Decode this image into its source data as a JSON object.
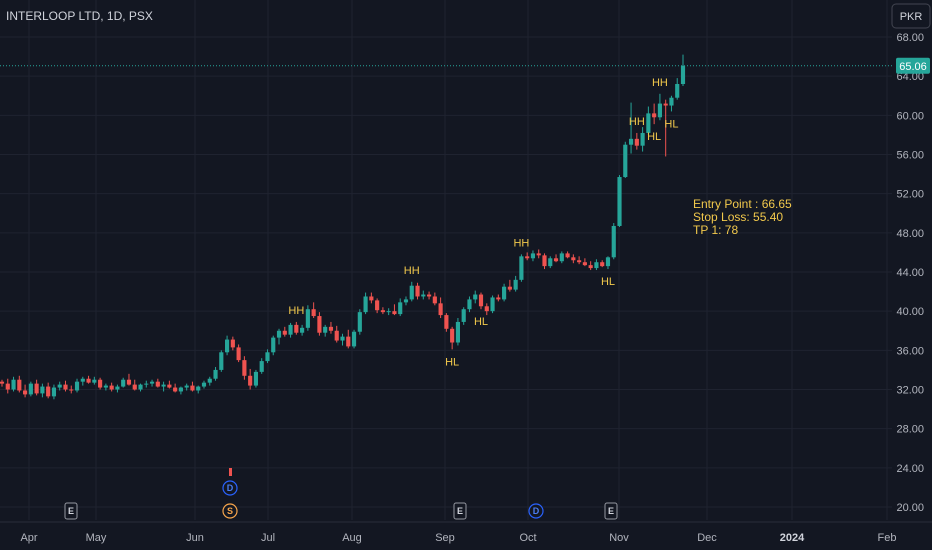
{
  "chart_data": {
    "type": "candlestick",
    "title": "INTERLOOP LTD, 1D, PSX",
    "currency": "PKR",
    "last_price": "65.06",
    "y_ticks": [
      "68.00",
      "64.00",
      "60.00",
      "56.00",
      "52.00",
      "48.00",
      "44.00",
      "40.00",
      "36.00",
      "32.00",
      "28.00",
      "24.00",
      "20.00"
    ],
    "ylim": [
      19.5,
      70.3
    ],
    "x_ticks": [
      "Apr",
      "May",
      "Jun",
      "Jul",
      "Aug",
      "Sep",
      "Oct",
      "Nov",
      "Dec",
      "2024",
      "Feb"
    ],
    "grid": true,
    "colors": {
      "background": "#131722",
      "up": "#26a69a",
      "down": "#ef5350",
      "grid": "#1f2330",
      "annotation": "#f2c94c"
    },
    "candles": [
      [
        32.8,
        33.0,
        32.3,
        32.6
      ],
      [
        32.6,
        33.1,
        31.6,
        32.0
      ],
      [
        32.0,
        33.3,
        31.8,
        33.0
      ],
      [
        33.0,
        33.4,
        31.7,
        31.9
      ],
      [
        31.9,
        32.5,
        31.2,
        31.5
      ],
      [
        31.5,
        32.8,
        31.3,
        32.6
      ],
      [
        32.6,
        33.0,
        31.4,
        31.6
      ],
      [
        31.6,
        32.6,
        31.2,
        32.3
      ],
      [
        32.3,
        32.7,
        31.1,
        31.3
      ],
      [
        31.3,
        32.5,
        31.0,
        32.2
      ],
      [
        32.2,
        32.8,
        31.9,
        32.5
      ],
      [
        32.5,
        32.9,
        31.8,
        32.0
      ],
      [
        32.0,
        32.4,
        31.6,
        31.9
      ],
      [
        31.9,
        33.1,
        31.7,
        32.8
      ],
      [
        32.8,
        33.3,
        32.4,
        33.1
      ],
      [
        33.1,
        33.4,
        32.6,
        32.7
      ],
      [
        32.7,
        33.3,
        32.5,
        33.0
      ],
      [
        33.0,
        33.2,
        32.0,
        32.2
      ],
      [
        32.2,
        32.6,
        31.9,
        32.4
      ],
      [
        32.4,
        32.7,
        31.8,
        32.0
      ],
      [
        32.0,
        32.5,
        31.7,
        32.3
      ],
      [
        32.3,
        33.2,
        32.2,
        33.0
      ],
      [
        33.0,
        33.6,
        32.4,
        32.5
      ],
      [
        32.5,
        33.0,
        31.9,
        32.0
      ],
      [
        32.0,
        32.6,
        31.8,
        32.5
      ],
      [
        32.5,
        32.9,
        32.2,
        32.6
      ],
      [
        32.6,
        33.0,
        32.3,
        32.8
      ],
      [
        32.8,
        33.1,
        32.2,
        32.3
      ],
      [
        32.3,
        32.8,
        31.8,
        32.5
      ],
      [
        32.5,
        32.9,
        32.1,
        32.2
      ],
      [
        32.2,
        32.6,
        31.7,
        31.8
      ],
      [
        31.8,
        32.3,
        31.5,
        32.2
      ],
      [
        32.2,
        32.6,
        31.9,
        32.4
      ],
      [
        32.4,
        32.8,
        31.8,
        31.9
      ],
      [
        31.9,
        32.4,
        31.6,
        32.3
      ],
      [
        32.3,
        32.9,
        32.1,
        32.7
      ],
      [
        32.7,
        33.3,
        32.4,
        33.1
      ],
      [
        33.1,
        34.3,
        32.9,
        34.0
      ],
      [
        34.0,
        36.0,
        33.8,
        35.8
      ],
      [
        35.8,
        37.5,
        35.5,
        37.1
      ],
      [
        37.1,
        37.4,
        36.0,
        36.3
      ],
      [
        36.3,
        36.6,
        34.8,
        35.0
      ],
      [
        35.0,
        35.4,
        33.0,
        33.4
      ],
      [
        33.4,
        34.1,
        32.0,
        32.4
      ],
      [
        32.4,
        34.0,
        32.2,
        33.8
      ],
      [
        33.8,
        35.2,
        33.6,
        34.9
      ],
      [
        34.9,
        36.1,
        34.7,
        35.8
      ],
      [
        35.8,
        37.5,
        35.5,
        37.3
      ],
      [
        37.3,
        38.2,
        36.6,
        38.0
      ],
      [
        38.0,
        38.4,
        37.4,
        37.6
      ],
      [
        37.6,
        38.8,
        37.3,
        38.6
      ],
      [
        38.6,
        38.9,
        37.6,
        37.8
      ],
      [
        37.8,
        38.6,
        37.5,
        38.3
      ],
      [
        38.3,
        40.6,
        38.0,
        40.2
      ],
      [
        40.2,
        40.9,
        39.3,
        39.5
      ],
      [
        39.5,
        39.9,
        37.5,
        37.8
      ],
      [
        37.8,
        38.6,
        37.4,
        38.4
      ],
      [
        38.4,
        38.9,
        37.7,
        38.0
      ],
      [
        38.0,
        38.5,
        36.8,
        37.0
      ],
      [
        37.0,
        37.7,
        36.5,
        37.4
      ],
      [
        37.4,
        38.1,
        36.2,
        36.4
      ],
      [
        36.4,
        38.1,
        36.2,
        37.9
      ],
      [
        37.9,
        40.2,
        37.6,
        39.9
      ],
      [
        39.9,
        41.9,
        39.7,
        41.5
      ],
      [
        41.5,
        41.9,
        40.8,
        41.1
      ],
      [
        41.1,
        41.3,
        39.8,
        40.1
      ],
      [
        40.1,
        40.4,
        39.7,
        39.9
      ],
      [
        39.9,
        40.3,
        39.6,
        40.0
      ],
      [
        40.0,
        40.7,
        39.6,
        39.7
      ],
      [
        39.7,
        41.3,
        39.5,
        40.9
      ],
      [
        40.9,
        41.5,
        40.6,
        41.2
      ],
      [
        41.2,
        43.0,
        41.0,
        42.6
      ],
      [
        42.6,
        42.9,
        41.2,
        41.5
      ],
      [
        41.5,
        42.1,
        41.2,
        41.7
      ],
      [
        41.7,
        42.0,
        41.2,
        41.5
      ],
      [
        41.5,
        41.9,
        40.6,
        40.8
      ],
      [
        40.8,
        41.4,
        39.3,
        39.6
      ],
      [
        39.6,
        39.8,
        37.9,
        38.2
      ],
      [
        38.2,
        38.4,
        36.1,
        36.8
      ],
      [
        36.8,
        39.3,
        36.5,
        38.9
      ],
      [
        38.9,
        40.4,
        38.6,
        40.2
      ],
      [
        40.2,
        41.5,
        39.9,
        41.2
      ],
      [
        41.2,
        42.1,
        40.8,
        41.7
      ],
      [
        41.7,
        41.9,
        40.2,
        40.5
      ],
      [
        40.5,
        40.8,
        39.6,
        40.0
      ],
      [
        40.0,
        41.6,
        39.8,
        41.4
      ],
      [
        41.4,
        41.7,
        41.0,
        41.2
      ],
      [
        41.2,
        42.8,
        41.0,
        42.5
      ],
      [
        42.5,
        43.2,
        42.0,
        42.2
      ],
      [
        42.2,
        43.6,
        42.0,
        43.2
      ],
      [
        43.2,
        45.8,
        43.0,
        45.6
      ],
      [
        45.6,
        46.0,
        45.2,
        45.4
      ],
      [
        45.4,
        46.2,
        45.1,
        45.9
      ],
      [
        45.9,
        46.3,
        45.4,
        45.7
      ],
      [
        45.7,
        45.9,
        44.3,
        44.6
      ],
      [
        44.6,
        45.6,
        44.4,
        45.4
      ],
      [
        45.4,
        45.8,
        45.0,
        45.1
      ],
      [
        45.1,
        46.1,
        44.9,
        45.9
      ],
      [
        45.9,
        46.1,
        45.4,
        45.5
      ],
      [
        45.5,
        45.8,
        44.9,
        45.2
      ],
      [
        45.2,
        45.6,
        44.8,
        45.0
      ],
      [
        45.0,
        45.4,
        44.6,
        44.7
      ],
      [
        44.7,
        45.1,
        44.2,
        44.4
      ],
      [
        44.4,
        45.3,
        44.2,
        45.0
      ],
      [
        45.0,
        45.2,
        44.5,
        44.6
      ],
      [
        44.6,
        45.6,
        44.3,
        45.5
      ],
      [
        45.5,
        49.0,
        45.3,
        48.7
      ],
      [
        48.7,
        53.9,
        48.6,
        53.7
      ],
      [
        53.7,
        57.3,
        53.6,
        57.0
      ],
      [
        57.0,
        61.3,
        56.1,
        57.6
      ],
      [
        57.6,
        58.2,
        56.5,
        56.9
      ],
      [
        56.9,
        58.8,
        56.3,
        58.2
      ],
      [
        58.2,
        60.9,
        58.0,
        60.2
      ],
      [
        60.2,
        61.2,
        59.1,
        59.8
      ],
      [
        59.8,
        62.2,
        59.5,
        61.2
      ],
      [
        61.2,
        61.6,
        55.8,
        61.0
      ],
      [
        61.0,
        62.0,
        60.4,
        61.8
      ],
      [
        61.8,
        63.8,
        61.6,
        63.2
      ],
      [
        63.2,
        66.2,
        63.0,
        65.06
      ]
    ],
    "annotations": [
      {
        "text": "HH",
        "pos": "above",
        "ci": 51
      },
      {
        "text": "HH",
        "pos": "above",
        "ci": 71
      },
      {
        "text": "HL",
        "pos": "below",
        "ci": 78
      },
      {
        "text": "HL",
        "pos": "below",
        "ci": 83
      },
      {
        "text": "HH",
        "pos": "above",
        "ci": 90
      },
      {
        "text": "HL",
        "pos": "below",
        "ci": 105
      },
      {
        "text": "HH",
        "pos": "above",
        "ci": 110
      },
      {
        "text": "HL",
        "pos": "below",
        "ci": 113
      },
      {
        "text": "HH",
        "pos": "above",
        "ci": 114
      },
      {
        "text": "HL",
        "pos": "below",
        "ci": 116
      }
    ],
    "notes": [
      "Entry Point : 66.65",
      "Stop Loss: 55.40",
      "TP 1: 78"
    ],
    "events": [
      {
        "label": "E",
        "kind": "earnings",
        "date": "Apr"
      },
      {
        "label": "D",
        "kind": "dividend",
        "date": "Jun"
      },
      {
        "label": "S",
        "kind": "split",
        "date": "Jun"
      },
      {
        "label": "E",
        "kind": "earnings",
        "date": "Sep"
      },
      {
        "label": "D",
        "kind": "dividend",
        "date": "Oct"
      },
      {
        "label": "E",
        "kind": "earnings",
        "date": "Nov"
      }
    ]
  }
}
